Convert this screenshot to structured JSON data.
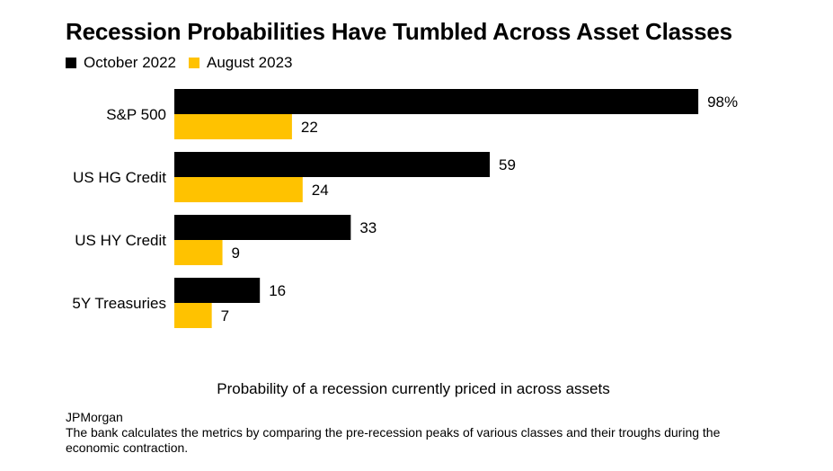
{
  "colors": {
    "october_2022": "#000000",
    "august_2023": "#FFC200"
  },
  "source": "JPMorgan",
  "note": "The bank calculates the metrics by comparing the pre-recession peaks of various classes and their troughs during the economic contraction.",
  "chart_data": {
    "type": "bar",
    "orientation": "horizontal",
    "title": "Recession Probabilities Have Tumbled Across Asset Classes",
    "xlabel": "Probability of a recession currently priced in across assets",
    "ylabel": "",
    "categories": [
      "S&P 500",
      "US HG Credit",
      "US HY Credit",
      "5Y Treasuries"
    ],
    "series": [
      {
        "name": "October 2022",
        "values": [
          98,
          59,
          33,
          16
        ],
        "labels": [
          "98%",
          "59",
          "33",
          "16"
        ],
        "color": "#000000"
      },
      {
        "name": "August 2023",
        "values": [
          22,
          24,
          9,
          7
        ],
        "labels": [
          "22",
          "24",
          "9",
          "7"
        ],
        "color": "#FFC200"
      }
    ],
    "xlim": [
      0,
      100
    ],
    "grid": false,
    "legend_position": "top-left"
  }
}
